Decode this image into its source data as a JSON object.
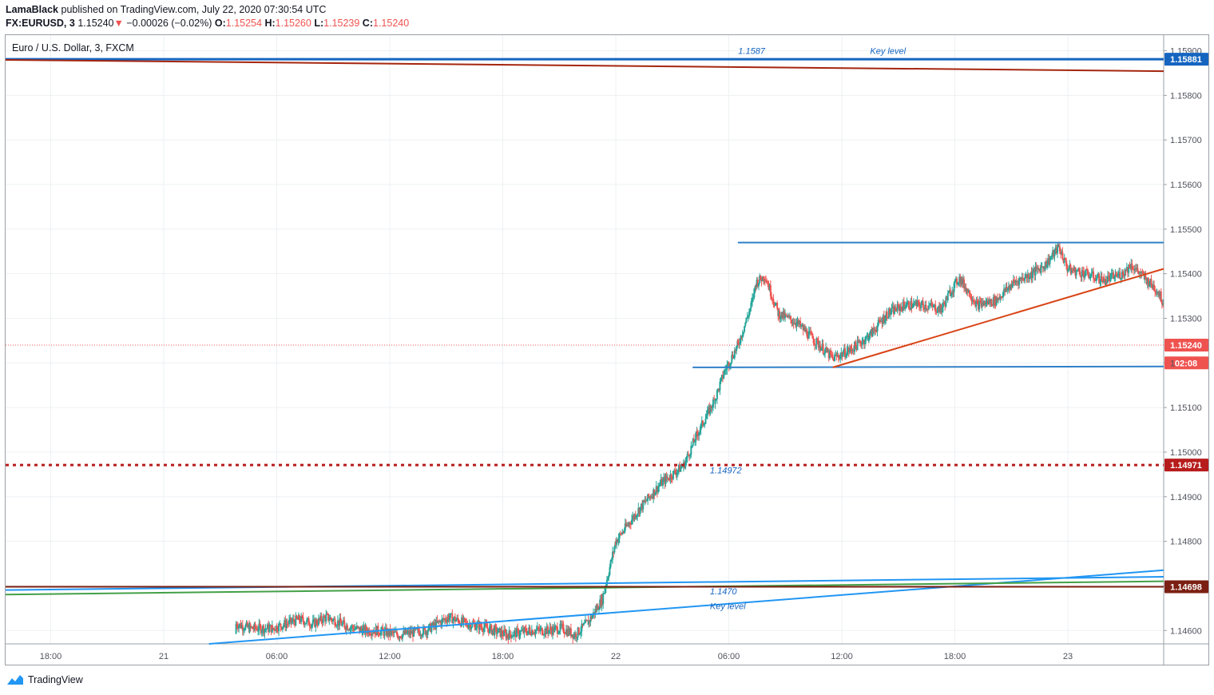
{
  "header": {
    "author": "LamaBlack",
    "published_text": "published on TradingView.com, July 22, 2020 07:30:54 UTC",
    "symbol": "FX:EURUSD, 3",
    "last": "1.15240",
    "change_arrow": "▼",
    "change": "−0.00026 (−0.02%)",
    "o_label": "O:",
    "o": "1.15254",
    "h_label": "H:",
    "h": "1.15260",
    "l_label": "L:",
    "l": "1.15239",
    "c_label": "C:",
    "c": "1.15240"
  },
  "legend": "Euro / U.S. Dollar, 3, FXCM",
  "footer": {
    "brand": "TradingView"
  },
  "colors": {
    "up": "#26a69a",
    "down": "#ef5350",
    "blue_line": "#2196f3",
    "key_blue": "#1565c0",
    "dark_red": "#8b1a0e",
    "red_trend": "#d84315",
    "green": "#43a047",
    "grid": "#eef0f3"
  },
  "chart_data": {
    "type": "candlestick",
    "symbol": "EURUSD",
    "timeframe": "3",
    "ylim": [
      1.1457,
      1.15935
    ],
    "y_ticks": [
      "1.15900",
      "1.15800",
      "1.15700",
      "1.15600",
      "1.15500",
      "1.15400",
      "1.15300",
      "1.15200",
      "1.15100",
      "1.15000",
      "1.14900",
      "1.14800",
      "1.14700",
      "1.14600"
    ],
    "x_ticks": [
      "18:00",
      "21",
      "06:00",
      "12:00",
      "18:00",
      "22",
      "06:00",
      "12:00",
      "18:00",
      "23"
    ],
    "price_labels": [
      {
        "text": "1.15881",
        "value": 1.15881,
        "color": "#1565c0"
      },
      {
        "text": "1.15240",
        "value": 1.1524,
        "color": "#ef5350"
      },
      {
        "text": "02:08",
        "value": 1.152,
        "color": "#ef5350"
      },
      {
        "text": "1.14971",
        "value": 1.14971,
        "color": "#b71c1c"
      },
      {
        "text": "1.14698",
        "value": 1.14698,
        "color": "#7b1f12"
      }
    ],
    "partial_tick": "1",
    "annotations": [
      {
        "text": "1.1587",
        "x_time": "22 06:30",
        "y": 1.159
      },
      {
        "text": "Key level",
        "x_time": "22 13:30",
        "y": 1.159
      },
      {
        "text": "1.14972",
        "x_time": "22 05:00",
        "y": 1.1496
      },
      {
        "text": "1.1470",
        "x_time": "22 05:00",
        "y": 1.14688
      },
      {
        "text": "Key level",
        "x_time": "22 05:00",
        "y": 1.14655
      }
    ],
    "series": [
      {
        "name": "EURUSD 3m",
        "approx_path": [
          [
            0.16,
            1.14593
          ],
          [
            0.16,
            1.14615
          ],
          [
            0.19,
            1.14605
          ],
          [
            0.24,
            1.14605
          ],
          [
            0.3,
            1.14625
          ],
          [
            0.33,
            1.14615
          ],
          [
            0.36,
            1.1463
          ],
          [
            0.4,
            1.14612
          ],
          [
            0.44,
            1.146
          ],
          [
            0.47,
            1.146
          ],
          [
            0.52,
            1.1459
          ],
          [
            0.58,
            1.146
          ],
          [
            0.63,
            1.1463
          ],
          [
            0.67,
            1.14615
          ],
          [
            0.7,
            1.1461
          ],
          [
            0.73,
            1.146
          ],
          [
            0.76,
            1.1459
          ],
          [
            0.81,
            1.146
          ],
          [
            0.85,
            1.146
          ],
          [
            0.88,
            1.14605
          ],
          [
            0.91,
            1.1459
          ],
          [
            0.94,
            1.1462
          ],
          [
            0.97,
            1.1467
          ],
          [
            1.0,
            1.148
          ],
          [
            1.05,
            1.1487
          ],
          [
            1.1,
            1.1493
          ],
          [
            1.15,
            1.1497
          ],
          [
            1.18,
            1.1504
          ],
          [
            1.22,
            1.1512
          ],
          [
            1.24,
            1.1518
          ],
          [
            1.27,
            1.1524
          ],
          [
            1.3,
            1.1533
          ],
          [
            1.31,
            1.1538
          ],
          [
            1.33,
            1.15395
          ],
          [
            1.36,
            1.1531
          ],
          [
            1.4,
            1.1529
          ],
          [
            1.44,
            1.1525
          ],
          [
            1.48,
            1.1521
          ],
          [
            1.52,
            1.1523
          ],
          [
            1.56,
            1.1526
          ],
          [
            1.6,
            1.1531
          ],
          [
            1.64,
            1.1533
          ],
          [
            1.68,
            1.1533
          ],
          [
            1.72,
            1.1532
          ],
          [
            1.74,
            1.1536
          ],
          [
            1.76,
            1.1539
          ],
          [
            1.8,
            1.1533
          ],
          [
            1.84,
            1.1534
          ],
          [
            1.88,
            1.1538
          ],
          [
            1.92,
            1.154
          ],
          [
            1.95,
            1.1542
          ],
          [
            1.98,
            1.1546
          ],
          [
            2.0,
            1.1541
          ],
          [
            2.04,
            1.154
          ],
          [
            2.08,
            1.15385
          ],
          [
            2.12,
            1.154
          ],
          [
            2.14,
            1.1542
          ],
          [
            2.17,
            1.1539
          ],
          [
            2.2,
            1.1536
          ],
          [
            2.23,
            1.1529
          ],
          [
            2.26,
            1.152
          ],
          [
            2.29,
            1.1531
          ],
          [
            2.31,
            1.154
          ],
          [
            2.33,
            1.1544
          ],
          [
            2.35,
            1.1533
          ],
          [
            2.36,
            1.1524
          ]
        ]
      }
    ],
    "drawings": [
      {
        "name": "key-level-top",
        "from": [
          -0.4,
          1.15881
        ],
        "to": [
          3.04,
          1.15881
        ]
      },
      {
        "name": "red-trend-top",
        "from": [
          -0.4,
          1.1588
        ],
        "to": [
          3.04,
          1.15846
        ]
      },
      {
        "name": "range-top",
        "from": [
          1.27,
          1.1547
        ],
        "to": [
          2.7,
          1.1547
        ]
      },
      {
        "name": "range-bottom",
        "from": [
          1.17,
          1.1519
        ],
        "to": [
          2.64,
          1.15193
        ]
      },
      {
        "name": "rising-wedge",
        "from": [
          1.48,
          1.1519
        ],
        "to": [
          2.49,
          1.15495
        ]
      },
      {
        "name": "support-dotted",
        "from": [
          -0.4,
          1.14971
        ],
        "to": [
          3.04,
          1.14971
        ]
      },
      {
        "name": "blue-rising",
        "from": [
          0.1,
          1.1457
        ],
        "to": [
          3.04,
          1.148
        ]
      },
      {
        "name": "blue-flat",
        "from": [
          -0.4,
          1.1469
        ],
        "to": [
          3.04,
          1.1473
        ]
      },
      {
        "name": "green-line",
        "from": [
          -0.4,
          1.1468
        ],
        "to": [
          3.04,
          1.1472
        ]
      },
      {
        "name": "key-level-bottom",
        "from": [
          -0.4,
          1.14698
        ],
        "to": [
          3.04,
          1.14698
        ]
      }
    ]
  }
}
